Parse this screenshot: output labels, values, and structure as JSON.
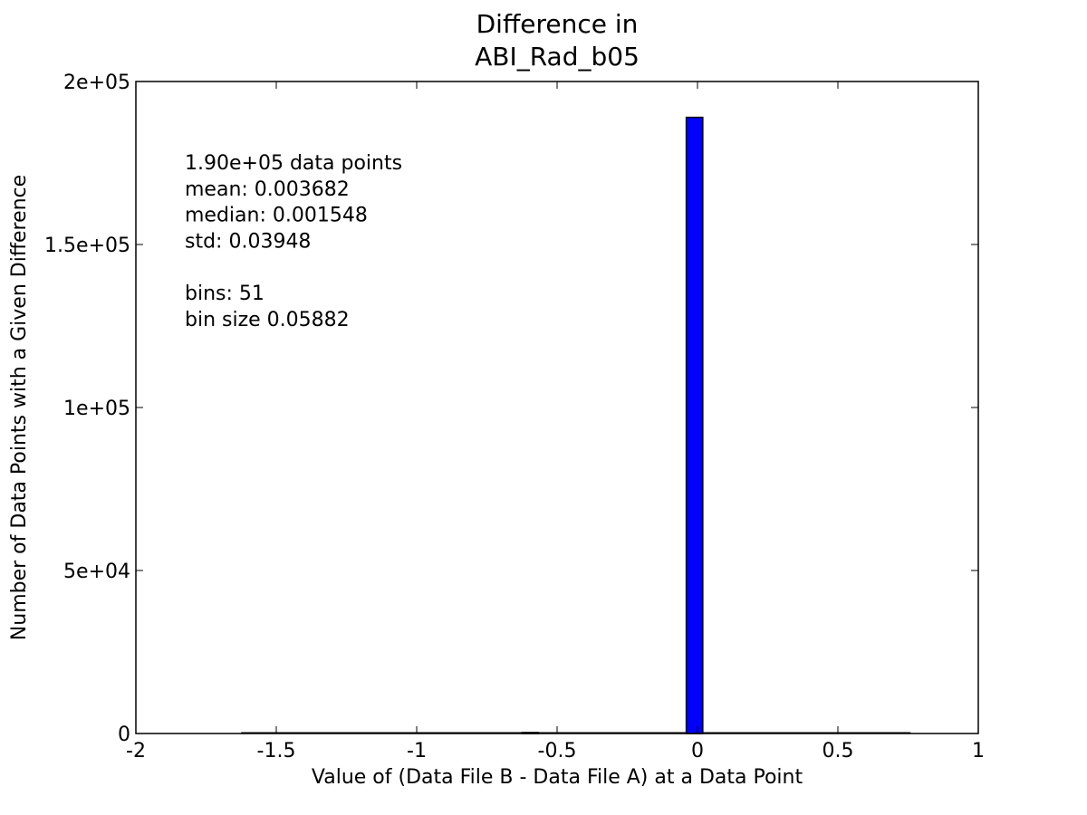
{
  "chart_data": {
    "type": "bar",
    "title": "Difference in\nABI_Rad_b05",
    "xlabel": "Value of (Data File B - Data File A) at a Data Point",
    "ylabel": "Number of Data Points with a Given Difference",
    "xlim": [
      -2,
      1
    ],
    "ylim": [
      0,
      200000
    ],
    "x_ticks": [
      -2,
      -1.5,
      -1,
      -0.5,
      0,
      0.5,
      1
    ],
    "x_tick_labels": [
      "-2",
      "-1.5",
      "-1",
      "-0.5",
      "0",
      "0.5",
      "1"
    ],
    "y_ticks": [
      0,
      50000,
      100000,
      150000,
      200000
    ],
    "y_tick_labels": [
      "0",
      "5e+04",
      "1e+05",
      "1.5e+05",
      "2e+05"
    ],
    "grid": false,
    "bar_color": "#0000ff",
    "bin_start": -1.625,
    "bin_width": 0.05882,
    "bins": [
      {
        "x0": -1.625,
        "value": 0
      },
      {
        "x0": -0.625,
        "value": 300
      },
      {
        "x0": -0.04,
        "value": 189000
      },
      {
        "x0": 0.7,
        "value": 0
      }
    ],
    "annotations": [
      "1.90e+05 data points",
      "mean: 0.003682",
      "median: 0.001548",
      "std: 0.03948",
      "",
      "bins: 51",
      "bin size 0.05882"
    ]
  }
}
